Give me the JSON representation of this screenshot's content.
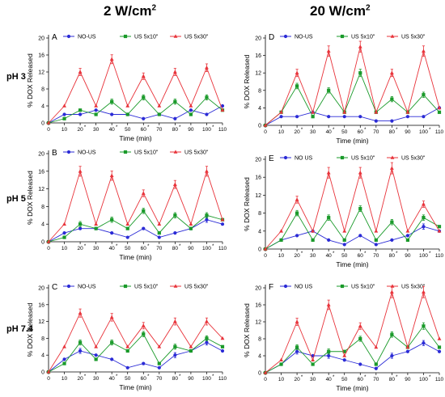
{
  "figure": {
    "col_titles": [
      {
        "main": "2 W/cm",
        "sup": "2"
      },
      {
        "main": "20 W/cm",
        "sup": "2"
      }
    ],
    "row_titles": [
      "pH 3",
      "pH 5",
      "pH 7.4"
    ]
  },
  "colors": {
    "no_us": "#2b2bd6",
    "us5x10": "#1a9a2a",
    "us5x30": "#e8333a"
  },
  "chart_data": [
    {
      "panel": "A",
      "type": "line",
      "xlabel": "Time (min)",
      "ylabel": "% DOX Released",
      "xlim": [
        0,
        110
      ],
      "ylim": [
        0,
        20
      ],
      "x": [
        0,
        10,
        20,
        30,
        40,
        50,
        60,
        70,
        80,
        90,
        100,
        110
      ],
      "xtick_labels": [
        "0",
        "10",
        "20",
        "30",
        "40",
        "50",
        "60",
        "70",
        "80",
        "90",
        "100",
        "110"
      ],
      "starred_ticks": [
        20,
        40,
        60,
        80,
        100
      ],
      "yticks": [
        0,
        4,
        8,
        12,
        16,
        20
      ],
      "series": [
        {
          "name": "NO-US",
          "marker": "circle",
          "values": [
            0,
            2,
            2,
            3,
            2,
            2,
            1,
            2,
            1,
            3,
            2,
            4
          ]
        },
        {
          "name": "US 5x10\"",
          "marker": "square",
          "values": [
            0,
            1,
            3,
            2,
            5,
            2,
            6,
            2,
            5,
            2,
            6,
            3
          ]
        },
        {
          "name": "US 5x30\"",
          "marker": "triangle",
          "values": [
            0,
            4,
            12,
            4,
            15,
            4,
            11,
            4,
            12,
            4,
            13,
            3
          ]
        }
      ]
    },
    {
      "panel": "D",
      "type": "line",
      "xlabel": "Time (min)",
      "ylabel": "% DOX Released",
      "xlim": [
        0,
        110
      ],
      "ylim": [
        0,
        20
      ],
      "x": [
        0,
        10,
        20,
        30,
        40,
        50,
        60,
        70,
        80,
        90,
        100,
        110
      ],
      "xtick_labels": [
        "0",
        "10",
        "20",
        "30",
        "40",
        "50",
        "60",
        "70",
        "80",
        "90",
        "100",
        "110"
      ],
      "starred_ticks": [
        20,
        40,
        60,
        80,
        100
      ],
      "yticks": [
        0,
        4,
        8,
        12,
        16,
        20
      ],
      "series": [
        {
          "name": "NO-US",
          "marker": "circle",
          "values": [
            0,
            2,
            2,
            3,
            2,
            2,
            2,
            1,
            1,
            2,
            2,
            4
          ]
        },
        {
          "name": "US 5x10\"",
          "marker": "square",
          "values": [
            0,
            3,
            9,
            2,
            8,
            3,
            12,
            3,
            6,
            3,
            7,
            3
          ]
        },
        {
          "name": "US 5x30\"",
          "marker": "triangle",
          "values": [
            0,
            3,
            12,
            3,
            17,
            3,
            18,
            3,
            12,
            3,
            17,
            4
          ]
        }
      ]
    },
    {
      "panel": "B",
      "type": "line",
      "xlabel": "Time (min)",
      "ylabel": "% DOX Released",
      "xlim": [
        0,
        110
      ],
      "ylim": [
        0,
        20
      ],
      "x": [
        0,
        10,
        20,
        30,
        40,
        50,
        60,
        70,
        80,
        90,
        100,
        110
      ],
      "xtick_labels": [
        "0",
        "10",
        "20",
        "30",
        "40",
        "50",
        "60",
        "70",
        "80",
        "90",
        "100",
        "110"
      ],
      "starred_ticks": [
        20,
        40,
        60,
        80,
        100
      ],
      "yticks": [
        0,
        4,
        8,
        12,
        16,
        20
      ],
      "series": [
        {
          "name": "NO-US",
          "marker": "circle",
          "values": [
            0,
            2,
            3,
            3,
            2,
            1,
            3,
            1,
            2,
            3,
            5,
            4
          ]
        },
        {
          "name": "US 5x10\"",
          "marker": "square",
          "values": [
            0,
            1,
            4,
            3,
            5,
            3,
            7,
            2,
            6,
            3,
            6,
            5
          ]
        },
        {
          "name": "US 5x30\"",
          "marker": "triangle",
          "values": [
            0,
            4,
            16,
            4,
            15,
            4,
            11,
            4,
            13,
            4,
            16,
            5
          ]
        }
      ]
    },
    {
      "panel": "E",
      "type": "line",
      "xlabel": "Time (min)",
      "ylabel": "% DOX Released",
      "xlim": [
        0,
        110
      ],
      "ylim": [
        0,
        20
      ],
      "x": [
        0,
        10,
        20,
        30,
        40,
        50,
        60,
        70,
        80,
        90,
        100,
        110
      ],
      "xtick_labels": [
        "0",
        "10",
        "20",
        "30",
        "40",
        "50",
        "60",
        "70",
        "80",
        "90",
        "100",
        "110"
      ],
      "starred_ticks": [
        20,
        40,
        60,
        80,
        100
      ],
      "yticks": [
        0,
        4,
        8,
        12,
        16,
        20
      ],
      "series": [
        {
          "name": "NO US",
          "marker": "circle",
          "values": [
            0,
            2,
            3,
            4,
            2,
            1,
            3,
            1,
            2,
            3,
            5,
            4
          ]
        },
        {
          "name": "US 5x10\"",
          "marker": "square",
          "values": [
            0,
            2,
            8,
            2,
            7,
            2,
            9,
            2,
            6,
            2,
            7,
            5
          ]
        },
        {
          "name": "US 5x30\"",
          "marker": "triangle",
          "values": [
            0,
            4,
            11,
            4,
            17,
            4,
            17,
            4,
            18,
            4,
            10,
            4
          ]
        }
      ]
    },
    {
      "panel": "C",
      "type": "line",
      "xlabel": "Time (min)",
      "ylabel": "% DOX Released",
      "xlim": [
        0,
        110
      ],
      "ylim": [
        0,
        20
      ],
      "x": [
        0,
        10,
        20,
        30,
        40,
        50,
        60,
        70,
        80,
        90,
        100,
        110
      ],
      "xtick_labels": [
        "0",
        "10",
        "20",
        "30",
        "40",
        "50",
        "60",
        "70",
        "80",
        "90",
        "100",
        "110"
      ],
      "starred_ticks": [
        20,
        40,
        60,
        80,
        100
      ],
      "yticks": [
        0,
        4,
        8,
        12,
        16,
        20
      ],
      "series": [
        {
          "name": "NO-US",
          "marker": "circle",
          "values": [
            0,
            3,
            5,
            4,
            3,
            1,
            2,
            1,
            4,
            5,
            7,
            5
          ]
        },
        {
          "name": "US 5x10\"",
          "marker": "square",
          "values": [
            0,
            2,
            7,
            3,
            7,
            5,
            9,
            2,
            6,
            5,
            8,
            6
          ]
        },
        {
          "name": "US 5x30\"",
          "marker": "triangle",
          "values": [
            0,
            6,
            14,
            6,
            13,
            6,
            11,
            6,
            12,
            6,
            12,
            8
          ]
        }
      ]
    },
    {
      "panel": "F",
      "type": "line",
      "xlabel": "Time (min)",
      "ylabel": "% DOX Released",
      "xlim": [
        0,
        110
      ],
      "ylim": [
        0,
        20
      ],
      "x": [
        0,
        10,
        20,
        30,
        40,
        50,
        60,
        70,
        80,
        90,
        100,
        110
      ],
      "xtick_labels": [
        "0",
        "10",
        "20",
        "30",
        "40",
        "50",
        "60",
        "70",
        "80",
        "90",
        "100",
        "110"
      ],
      "starred_ticks": [
        20,
        40,
        60,
        80,
        100
      ],
      "yticks": [
        0,
        4,
        8,
        12,
        16,
        20
      ],
      "series": [
        {
          "name": "NO US",
          "marker": "circle",
          "values": [
            0,
            2,
            5,
            4,
            4,
            3,
            2,
            1,
            4,
            5,
            7,
            5
          ]
        },
        {
          "name": "US 5x10\"",
          "marker": "square",
          "values": [
            0,
            2,
            6,
            2,
            5,
            5,
            8,
            2,
            9,
            6,
            11,
            6
          ]
        },
        {
          "name": "US 5x30\"",
          "marker": "triangle",
          "values": [
            0,
            3,
            12,
            3,
            16,
            4,
            11,
            6,
            19,
            6,
            19,
            8
          ]
        }
      ]
    }
  ]
}
